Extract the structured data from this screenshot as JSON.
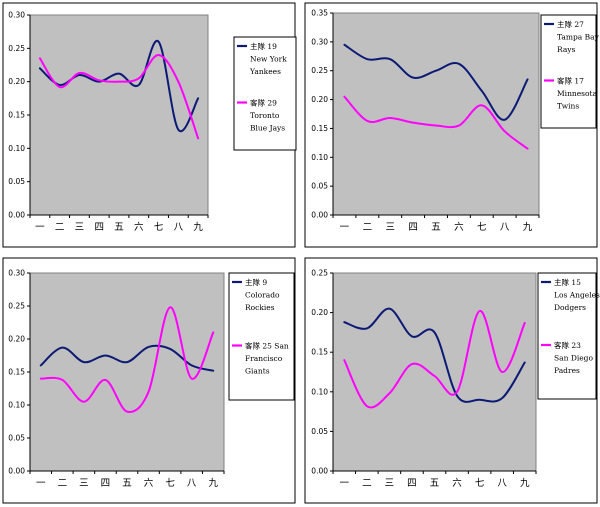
{
  "colors": {
    "home": "#0d1a75",
    "away": "#ff00ff",
    "plot_bg": "#c0c0c0",
    "frame": "#000000"
  },
  "chart_data": [
    {
      "type": "line",
      "categories": [
        "一",
        "二",
        "三",
        "四",
        "五",
        "六",
        "七",
        "八",
        "九"
      ],
      "ylim": [
        0,
        0.3
      ],
      "yticks": [
        "0.00",
        "0.05",
        "0.10",
        "0.15",
        "0.20",
        "0.25",
        "0.30"
      ],
      "grid": false,
      "legend_position": "right",
      "series": [
        {
          "name_lines": [
            "主隊 19",
            "New York",
            "Yankees"
          ],
          "role": "home",
          "values": [
            0.22,
            0.195,
            0.21,
            0.2,
            0.212,
            0.195,
            0.26,
            0.128,
            0.175
          ]
        },
        {
          "name_lines": [
            "客隊 29",
            "Toronto",
            "Blue Jays"
          ],
          "role": "away",
          "values": [
            0.235,
            0.192,
            0.213,
            0.202,
            0.2,
            0.205,
            0.24,
            0.2,
            0.115
          ]
        }
      ]
    },
    {
      "type": "line",
      "categories": [
        "一",
        "二",
        "三",
        "四",
        "五",
        "六",
        "七",
        "八",
        "九"
      ],
      "ylim": [
        0,
        0.35
      ],
      "yticks": [
        "0.00",
        "0.05",
        "0.10",
        "0.15",
        "0.20",
        "0.25",
        "0.30",
        "0.35"
      ],
      "grid": false,
      "legend_position": "right",
      "series": [
        {
          "name_lines": [
            "主隊 27",
            "Tampa Bay",
            "Rays"
          ],
          "role": "home",
          "values": [
            0.295,
            0.27,
            0.27,
            0.238,
            0.25,
            0.262,
            0.215,
            0.165,
            0.235
          ]
        },
        {
          "name_lines": [
            "客隊 17",
            "Minnesota",
            "Twins"
          ],
          "role": "away",
          "values": [
            0.205,
            0.163,
            0.168,
            0.16,
            0.155,
            0.155,
            0.19,
            0.145,
            0.115
          ]
        }
      ]
    },
    {
      "type": "line",
      "categories": [
        "一",
        "二",
        "三",
        "四",
        "五",
        "六",
        "七",
        "八",
        "九"
      ],
      "ylim": [
        0,
        0.3
      ],
      "yticks": [
        "0.00",
        "0.05",
        "0.10",
        "0.15",
        "0.20",
        "0.25",
        "0.30"
      ],
      "grid": false,
      "legend_position": "right",
      "series": [
        {
          "name_lines": [
            "主隊 9",
            "Colorado",
            "Rockies"
          ],
          "role": "home",
          "values": [
            0.16,
            0.187,
            0.165,
            0.175,
            0.165,
            0.188,
            0.185,
            0.16,
            0.152
          ]
        },
        {
          "name_lines": [
            "客隊 25 San",
            "Francisco",
            "Giants"
          ],
          "role": "away",
          "values": [
            0.14,
            0.138,
            0.105,
            0.138,
            0.09,
            0.12,
            0.248,
            0.14,
            0.21
          ]
        }
      ]
    },
    {
      "type": "line",
      "categories": [
        "一",
        "二",
        "三",
        "四",
        "五",
        "六",
        "七",
        "八",
        "九"
      ],
      "ylim": [
        0,
        0.25
      ],
      "yticks": [
        "0.00",
        "0.05",
        "0.10",
        "0.15",
        "0.20",
        "0.25"
      ],
      "grid": false,
      "legend_position": "right",
      "series": [
        {
          "name_lines": [
            "主隊 15",
            "Los Angeles",
            "Dodgers"
          ],
          "role": "home",
          "values": [
            0.188,
            0.18,
            0.205,
            0.17,
            0.175,
            0.095,
            0.09,
            0.092,
            0.137
          ]
        },
        {
          "name_lines": [
            "客隊 23",
            "San Diego",
            "Padres"
          ],
          "role": "away",
          "values": [
            0.14,
            0.082,
            0.098,
            0.135,
            0.12,
            0.1,
            0.202,
            0.125,
            0.187
          ]
        }
      ]
    }
  ]
}
